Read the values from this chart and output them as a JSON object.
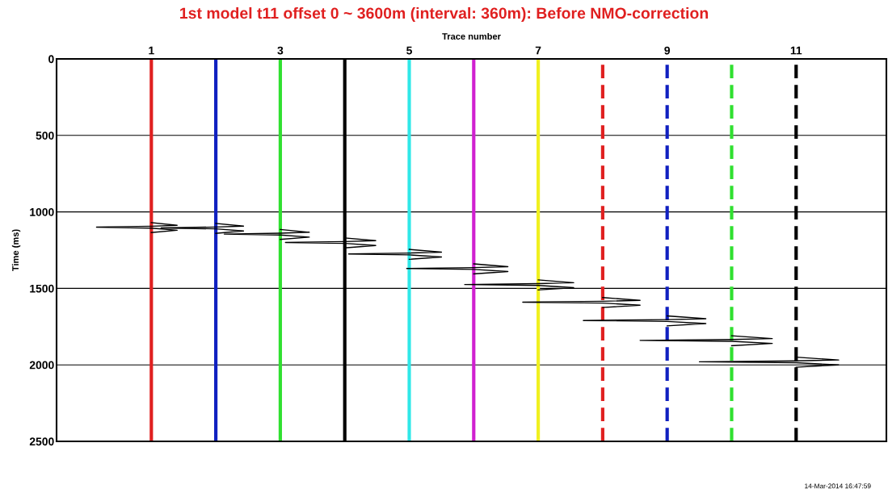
{
  "chart_data": {
    "type": "line",
    "title": "1st model t11 offset 0 ~ 3600m (interval: 360m): Before NMO-correction",
    "xlabel": "Trace number",
    "ylabel": "Time (ms)",
    "xlim": [
      -0.47,
      12.4
    ],
    "xticks": [
      1,
      3,
      5,
      7,
      9,
      11
    ],
    "ylim": [
      2500,
      0
    ],
    "yticks": [
      0,
      500,
      1000,
      1500,
      2000,
      2500
    ],
    "grid": "y",
    "legend": false,
    "marker": "none",
    "line_style": "solid",
    "series": [
      {
        "color": "#000000",
        "x": [
          1,
          1.4,
          1,
          0.15,
          1,
          1.4,
          1
        ],
        "values": [
          1070,
          1088,
          1094,
          1100,
          1106,
          1120,
          1135
        ]
      },
      {
        "color": "#000000",
        "x": [
          2,
          2.43,
          2,
          1.15,
          2,
          2.43,
          2
        ],
        "values": [
          1075,
          1093,
          1099,
          1105,
          1111,
          1125,
          1140
        ]
      },
      {
        "color": "#000000",
        "x": [
          3,
          3.45,
          3,
          2.13,
          3,
          3.45,
          3
        ],
        "values": [
          1115,
          1133,
          1139,
          1145,
          1151,
          1165,
          1180
        ]
      },
      {
        "color": "#000000",
        "x": [
          4,
          4.48,
          4,
          3.08,
          4,
          4.48,
          4
        ],
        "values": [
          1170,
          1188,
          1194,
          1200,
          1206,
          1220,
          1235
        ]
      },
      {
        "color": "#000000",
        "x": [
          5,
          5.5,
          5,
          4.06,
          5,
          5.5,
          5
        ],
        "values": [
          1245,
          1263,
          1269,
          1275,
          1281,
          1295,
          1310
        ]
      },
      {
        "color": "#000000",
        "x": [
          6,
          6.53,
          6,
          4.96,
          6,
          6.53,
          6
        ],
        "values": [
          1340,
          1358,
          1364,
          1370,
          1376,
          1390,
          1405
        ]
      },
      {
        "color": "#000000",
        "x": [
          7,
          7.55,
          7,
          5.86,
          7,
          7.55,
          7
        ],
        "values": [
          1445,
          1463,
          1469,
          1475,
          1481,
          1495,
          1510
        ]
      },
      {
        "color": "#000000",
        "x": [
          8,
          8.58,
          8,
          6.76,
          8,
          8.58,
          8
        ],
        "values": [
          1560,
          1578,
          1584,
          1590,
          1596,
          1610,
          1625
        ]
      },
      {
        "color": "#000000",
        "x": [
          9,
          9.6,
          9,
          7.7,
          9,
          9.6,
          9
        ],
        "values": [
          1680,
          1698,
          1704,
          1710,
          1716,
          1730,
          1745
        ]
      },
      {
        "color": "#000000",
        "x": [
          10,
          10.63,
          10,
          8.58,
          10,
          10.63,
          10
        ],
        "values": [
          1810,
          1828,
          1834,
          1840,
          1846,
          1860,
          1875
        ]
      },
      {
        "color": "#000000",
        "x": [
          11,
          11.66,
          11,
          9.5,
          11,
          11.66,
          11
        ],
        "values": [
          1950,
          1968,
          1974,
          1980,
          1986,
          2000,
          2015
        ]
      }
    ],
    "ref_lines": [
      {
        "axis": "x",
        "value": 1,
        "color": "#e02020",
        "line_style": "solid"
      },
      {
        "axis": "x",
        "value": 2,
        "color": "#1020c0",
        "line_style": "solid"
      },
      {
        "axis": "x",
        "value": 3,
        "color": "#30e030",
        "line_style": "solid"
      },
      {
        "axis": "x",
        "value": 4,
        "color": "#000000",
        "line_style": "solid"
      },
      {
        "axis": "x",
        "value": 5,
        "color": "#30e8e8",
        "line_style": "solid"
      },
      {
        "axis": "x",
        "value": 6,
        "color": "#d020d0",
        "line_style": "solid"
      },
      {
        "axis": "x",
        "value": 7,
        "color": "#f0f020",
        "line_style": "solid"
      },
      {
        "axis": "x",
        "value": 8,
        "color": "#e02020",
        "line_style": "dashed"
      },
      {
        "axis": "x",
        "value": 9,
        "color": "#1020c0",
        "line_style": "dashed"
      },
      {
        "axis": "x",
        "value": 10,
        "color": "#30e030",
        "line_style": "dashed"
      },
      {
        "axis": "x",
        "value": 11,
        "color": "#000000",
        "line_style": "dashed"
      }
    ],
    "annotations": [
      "14-Mar-2014 16:47:59"
    ]
  }
}
